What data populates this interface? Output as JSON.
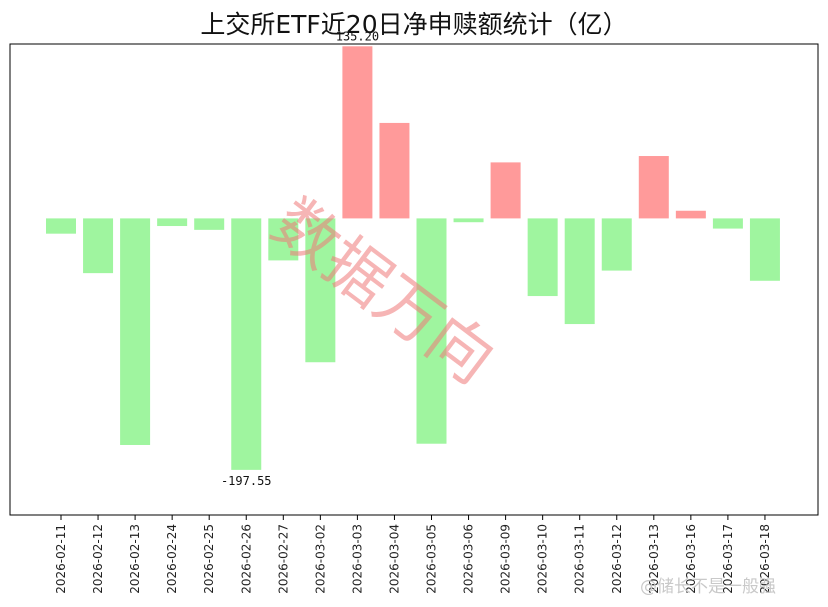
{
  "chart_data": {
    "type": "bar",
    "title": "上交所ETF近20日净申赎额统计（亿）",
    "categories": [
      "2026-02-11",
      "2026-02-12",
      "2026-02-13",
      "2026-02-24",
      "2026-02-25",
      "2026-02-26",
      "2026-02-27",
      "2026-03-02",
      "2026-03-03",
      "2026-03-04",
      "2026-03-05",
      "2026-03-06",
      "2026-03-09",
      "2026-03-10",
      "2026-03-11",
      "2026-03-12",
      "2026-03-13",
      "2026-03-16",
      "2026-03-17",
      "2026-03-18"
    ],
    "values": [
      -12,
      -43,
      -178,
      -6,
      -9,
      -197.55,
      -33,
      -113,
      135.2,
      75,
      -177,
      -3,
      44,
      -61,
      -83,
      -41,
      49,
      6,
      -8,
      -49
    ],
    "ylim": [
      -233,
      137
    ],
    "data_labels": [
      {
        "index": 8,
        "text": "135.20"
      },
      {
        "index": 5,
        "text": "-197.55"
      }
    ],
    "colors": {
      "positive": "#ff9a9a",
      "negative": "#9ff59f"
    },
    "grid": false,
    "legend": "none"
  },
  "watermark": "数据万向",
  "source_tag": "@储长不是一般强"
}
